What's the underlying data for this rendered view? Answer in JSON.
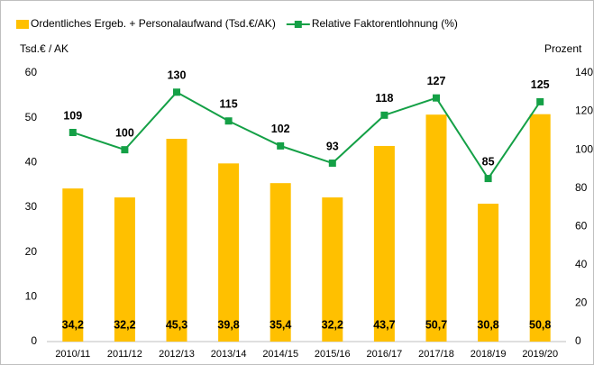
{
  "chart_data": {
    "type": "combo",
    "categories": [
      "2010/11",
      "2011/12",
      "2012/13",
      "2013/14",
      "2014/15",
      "2015/16",
      "2016/17",
      "2017/18",
      "2018/19",
      "2019/20"
    ],
    "series": [
      {
        "name": "Ordentliches Ergeb. + Personalaufwand (Tsd.€/AK)",
        "type": "bar",
        "axis": "y",
        "color": "#ffc000",
        "values": [
          34.2,
          32.2,
          45.3,
          39.8,
          35.4,
          32.2,
          43.7,
          50.7,
          30.8,
          50.8
        ],
        "value_labels": [
          "34,2",
          "32,2",
          "45,3",
          "39,8",
          "35,4",
          "32,2",
          "43,7",
          "50,7",
          "30,8",
          "50,8"
        ]
      },
      {
        "name": "Relative Faktorentlohnung (%)",
        "type": "line",
        "axis": "y2",
        "color": "#14a046",
        "values": [
          109,
          100,
          130,
          115,
          102,
          93,
          118,
          127,
          85,
          125
        ]
      }
    ],
    "ylabel": "Tsd.€ / AK",
    "y2label": "Prozent",
    "ylim": [
      0,
      60
    ],
    "yticks": [
      0,
      10,
      20,
      30,
      40,
      50,
      60
    ],
    "y2lim": [
      0,
      140
    ],
    "y2ticks": [
      0,
      20,
      40,
      60,
      80,
      100,
      120,
      140
    ],
    "legend": "top"
  }
}
